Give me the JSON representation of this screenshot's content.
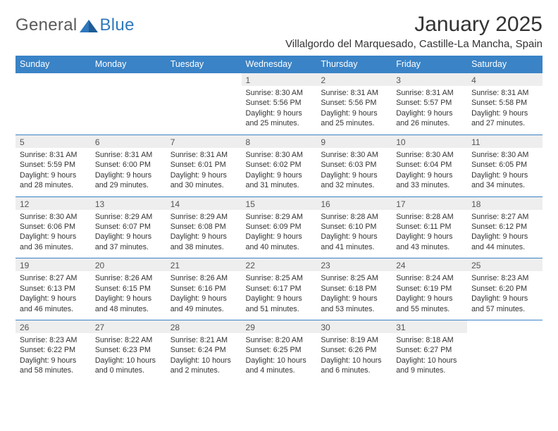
{
  "brand": {
    "part1": "General",
    "part2": "Blue",
    "color1": "#5a5a5a",
    "color2": "#2f78bd"
  },
  "header": {
    "title": "January 2025",
    "location": "Villalgordo del Marquesado, Castille-La Mancha, Spain"
  },
  "colors": {
    "header_bg": "#3a83c6",
    "header_text": "#ffffff",
    "daynum_bg": "#eeeeee",
    "border": "#3a83c6",
    "text": "#333333"
  },
  "weekdays": [
    "Sunday",
    "Monday",
    "Tuesday",
    "Wednesday",
    "Thursday",
    "Friday",
    "Saturday"
  ],
  "first_weekday_index": 3,
  "days": [
    {
      "n": 1,
      "sunrise": "8:30 AM",
      "sunset": "5:56 PM",
      "daylight": "9 hours and 25 minutes."
    },
    {
      "n": 2,
      "sunrise": "8:31 AM",
      "sunset": "5:56 PM",
      "daylight": "9 hours and 25 minutes."
    },
    {
      "n": 3,
      "sunrise": "8:31 AM",
      "sunset": "5:57 PM",
      "daylight": "9 hours and 26 minutes."
    },
    {
      "n": 4,
      "sunrise": "8:31 AM",
      "sunset": "5:58 PM",
      "daylight": "9 hours and 27 minutes."
    },
    {
      "n": 5,
      "sunrise": "8:31 AM",
      "sunset": "5:59 PM",
      "daylight": "9 hours and 28 minutes."
    },
    {
      "n": 6,
      "sunrise": "8:31 AM",
      "sunset": "6:00 PM",
      "daylight": "9 hours and 29 minutes."
    },
    {
      "n": 7,
      "sunrise": "8:31 AM",
      "sunset": "6:01 PM",
      "daylight": "9 hours and 30 minutes."
    },
    {
      "n": 8,
      "sunrise": "8:30 AM",
      "sunset": "6:02 PM",
      "daylight": "9 hours and 31 minutes."
    },
    {
      "n": 9,
      "sunrise": "8:30 AM",
      "sunset": "6:03 PM",
      "daylight": "9 hours and 32 minutes."
    },
    {
      "n": 10,
      "sunrise": "8:30 AM",
      "sunset": "6:04 PM",
      "daylight": "9 hours and 33 minutes."
    },
    {
      "n": 11,
      "sunrise": "8:30 AM",
      "sunset": "6:05 PM",
      "daylight": "9 hours and 34 minutes."
    },
    {
      "n": 12,
      "sunrise": "8:30 AM",
      "sunset": "6:06 PM",
      "daylight": "9 hours and 36 minutes."
    },
    {
      "n": 13,
      "sunrise": "8:29 AM",
      "sunset": "6:07 PM",
      "daylight": "9 hours and 37 minutes."
    },
    {
      "n": 14,
      "sunrise": "8:29 AM",
      "sunset": "6:08 PM",
      "daylight": "9 hours and 38 minutes."
    },
    {
      "n": 15,
      "sunrise": "8:29 AM",
      "sunset": "6:09 PM",
      "daylight": "9 hours and 40 minutes."
    },
    {
      "n": 16,
      "sunrise": "8:28 AM",
      "sunset": "6:10 PM",
      "daylight": "9 hours and 41 minutes."
    },
    {
      "n": 17,
      "sunrise": "8:28 AM",
      "sunset": "6:11 PM",
      "daylight": "9 hours and 43 minutes."
    },
    {
      "n": 18,
      "sunrise": "8:27 AM",
      "sunset": "6:12 PM",
      "daylight": "9 hours and 44 minutes."
    },
    {
      "n": 19,
      "sunrise": "8:27 AM",
      "sunset": "6:13 PM",
      "daylight": "9 hours and 46 minutes."
    },
    {
      "n": 20,
      "sunrise": "8:26 AM",
      "sunset": "6:15 PM",
      "daylight": "9 hours and 48 minutes."
    },
    {
      "n": 21,
      "sunrise": "8:26 AM",
      "sunset": "6:16 PM",
      "daylight": "9 hours and 49 minutes."
    },
    {
      "n": 22,
      "sunrise": "8:25 AM",
      "sunset": "6:17 PM",
      "daylight": "9 hours and 51 minutes."
    },
    {
      "n": 23,
      "sunrise": "8:25 AM",
      "sunset": "6:18 PM",
      "daylight": "9 hours and 53 minutes."
    },
    {
      "n": 24,
      "sunrise": "8:24 AM",
      "sunset": "6:19 PM",
      "daylight": "9 hours and 55 minutes."
    },
    {
      "n": 25,
      "sunrise": "8:23 AM",
      "sunset": "6:20 PM",
      "daylight": "9 hours and 57 minutes."
    },
    {
      "n": 26,
      "sunrise": "8:23 AM",
      "sunset": "6:22 PM",
      "daylight": "9 hours and 58 minutes."
    },
    {
      "n": 27,
      "sunrise": "8:22 AM",
      "sunset": "6:23 PM",
      "daylight": "10 hours and 0 minutes."
    },
    {
      "n": 28,
      "sunrise": "8:21 AM",
      "sunset": "6:24 PM",
      "daylight": "10 hours and 2 minutes."
    },
    {
      "n": 29,
      "sunrise": "8:20 AM",
      "sunset": "6:25 PM",
      "daylight": "10 hours and 4 minutes."
    },
    {
      "n": 30,
      "sunrise": "8:19 AM",
      "sunset": "6:26 PM",
      "daylight": "10 hours and 6 minutes."
    },
    {
      "n": 31,
      "sunrise": "8:18 AM",
      "sunset": "6:27 PM",
      "daylight": "10 hours and 9 minutes."
    }
  ],
  "labels": {
    "sunrise": "Sunrise:",
    "sunset": "Sunset:",
    "daylight": "Daylight:"
  }
}
